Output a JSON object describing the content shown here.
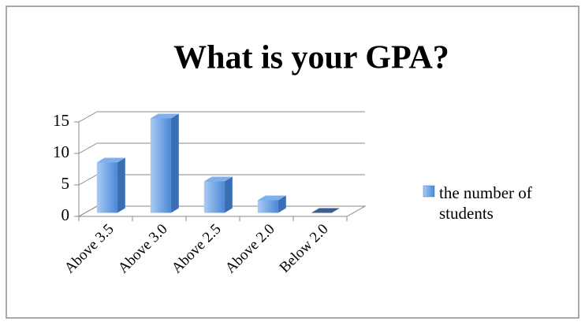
{
  "chart_data": {
    "type": "bar3d",
    "title": "What is your GPA?",
    "categories": [
      "Above 3.5",
      "Above 3.0",
      "Above 2.5",
      "Above 2.0",
      "Below 2.0"
    ],
    "series": [
      {
        "name": "the number of students",
        "color": "#4f8fdc",
        "values": [
          8,
          15,
          5,
          2,
          0
        ]
      }
    ],
    "ylim": [
      0,
      15
    ],
    "yticks": [
      0,
      5,
      10,
      15
    ],
    "grid": true,
    "legend": "right"
  }
}
